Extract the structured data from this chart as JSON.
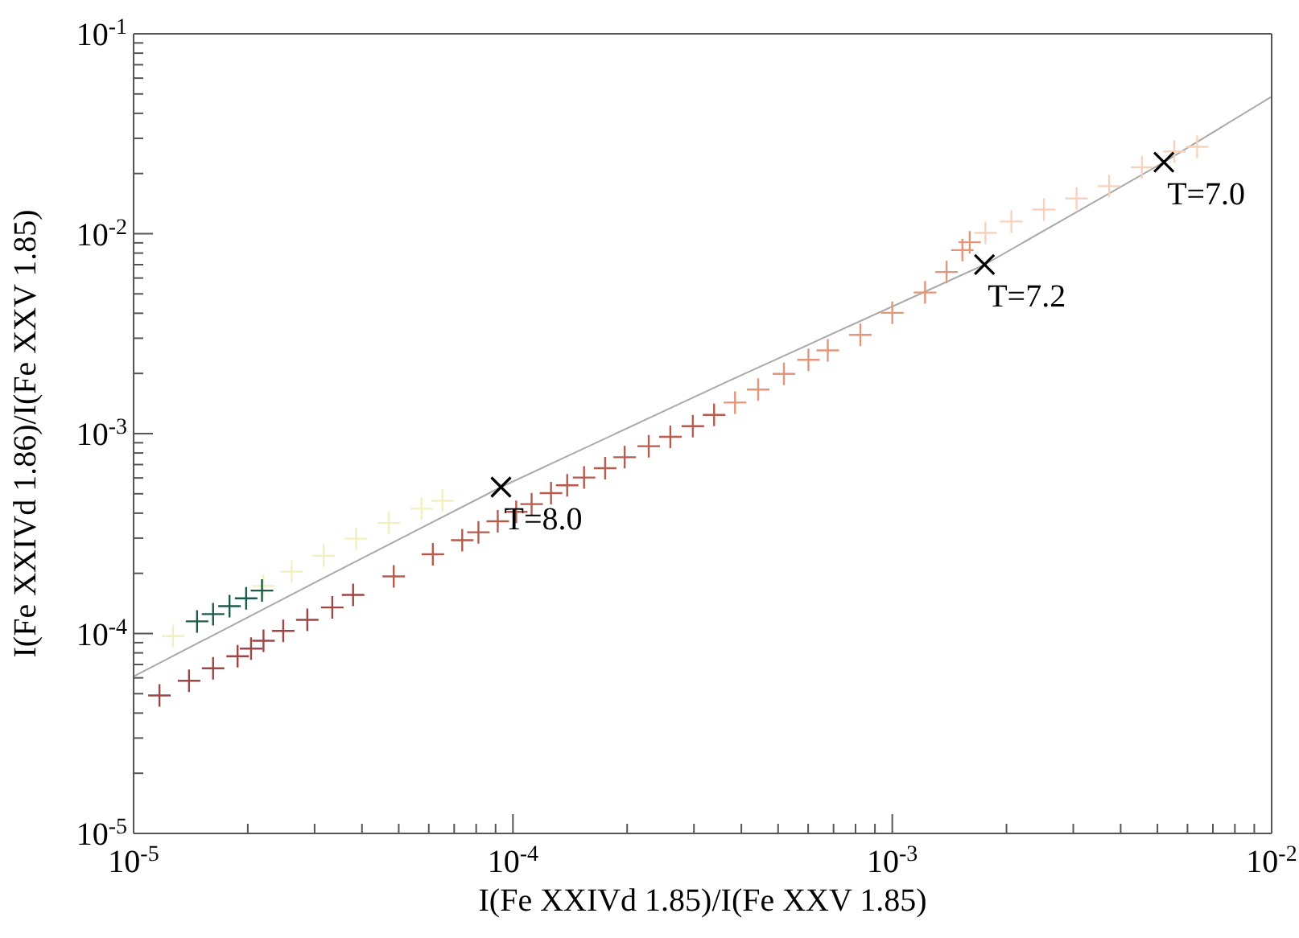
{
  "chart_data": {
    "type": "scatter",
    "xlabel": "I(Fe XXIVd 1.85)/I(Fe XXV 1.85)",
    "ylabel": "I(Fe XXIVd 1.86)/I(Fe XXV 1.85)",
    "log": "xy",
    "marker": "cross",
    "xlim": [
      1e-05,
      0.01
    ],
    "ylim": [
      1e-05,
      0.1
    ],
    "xticks": [
      {
        "value": 1e-05,
        "label": "10$^{-5}$"
      },
      {
        "value": 2e-05,
        "label": null
      },
      {
        "value": 3e-05,
        "label": null
      },
      {
        "value": 4e-05,
        "label": null
      },
      {
        "value": 5e-05,
        "label": null
      },
      {
        "value": 6e-05,
        "label": null
      },
      {
        "value": 7e-05,
        "label": null
      },
      {
        "value": 8e-05,
        "label": null
      },
      {
        "value": 9e-05,
        "label": null
      },
      {
        "value": 0.0001,
        "label": "10$^{-4}$"
      },
      {
        "value": 0.0002,
        "label": null
      },
      {
        "value": 0.0003,
        "label": null
      },
      {
        "value": 0.0004,
        "label": null
      },
      {
        "value": 0.0005,
        "label": null
      },
      {
        "value": 0.0006,
        "label": null
      },
      {
        "value": 0.0007,
        "label": null
      },
      {
        "value": 0.0008,
        "label": null
      },
      {
        "value": 0.0009,
        "label": null
      },
      {
        "value": 0.001,
        "label": "10$^{-3}$"
      },
      {
        "value": 0.002,
        "label": null
      },
      {
        "value": 0.003,
        "label": null
      },
      {
        "value": 0.004,
        "label": null
      },
      {
        "value": 0.005,
        "label": null
      },
      {
        "value": 0.006,
        "label": null
      },
      {
        "value": 0.007,
        "label": null
      },
      {
        "value": 0.008,
        "label": null
      },
      {
        "value": 0.009,
        "label": null
      },
      {
        "value": 0.01,
        "label": "10$^{-2}$"
      }
    ],
    "yticks": [
      {
        "value": 1e-05,
        "label": "10$^{-5}$"
      },
      {
        "value": 2e-05,
        "label": null
      },
      {
        "value": 3e-05,
        "label": null
      },
      {
        "value": 4e-05,
        "label": null
      },
      {
        "value": 5e-05,
        "label": null
      },
      {
        "value": 6e-05,
        "label": null
      },
      {
        "value": 7e-05,
        "label": null
      },
      {
        "value": 8e-05,
        "label": null
      },
      {
        "value": 9e-05,
        "label": null
      },
      {
        "value": 0.0001,
        "label": "10$^{-4}$"
      },
      {
        "value": 0.0002,
        "label": null
      },
      {
        "value": 0.0003,
        "label": null
      },
      {
        "value": 0.0004,
        "label": null
      },
      {
        "value": 0.0005,
        "label": null
      },
      {
        "value": 0.0006,
        "label": null
      },
      {
        "value": 0.0007,
        "label": null
      },
      {
        "value": 0.0008,
        "label": null
      },
      {
        "value": 0.0009,
        "label": null
      },
      {
        "value": 0.001,
        "label": "10$^{-3}$"
      },
      {
        "value": 0.002,
        "label": null
      },
      {
        "value": 0.003,
        "label": null
      },
      {
        "value": 0.004,
        "label": null
      },
      {
        "value": 0.005,
        "label": null
      },
      {
        "value": 0.006,
        "label": null
      },
      {
        "value": 0.007,
        "label": null
      },
      {
        "value": 0.008,
        "label": null
      },
      {
        "value": 0.009,
        "label": null
      },
      {
        "value": 0.01,
        "label": "10$^{-2}$"
      },
      {
        "value": 0.02,
        "label": null
      },
      {
        "value": 0.03,
        "label": null
      },
      {
        "value": 0.04,
        "label": null
      },
      {
        "value": 0.05,
        "label": null
      },
      {
        "value": 0.06,
        "label": null
      },
      {
        "value": 0.07,
        "label": null
      },
      {
        "value": 0.08,
        "label": null
      },
      {
        "value": 0.09,
        "label": null
      },
      {
        "value": 0.1,
        "label": "10$^{-1}$"
      }
    ],
    "series": [
      {
        "type": "line",
        "marker": "none",
        "color": "#aaaaaa",
        "x": [
          1e-05,
          3.18e-05,
          9.3e-05,
          0.000374,
          0.00175,
          0.0052,
          0.01
        ],
        "values": [
          6.1e-05,
          0.00019,
          0.00054,
          0.00185,
          0.007,
          0.0228,
          0.0485
        ]
      },
      {
        "color": "#a04545",
        "x": [
          1.17e-05,
          1.4e-05,
          1.62e-05,
          1.88e-05,
          2.04e-05,
          2.2e-05,
          2.48e-05,
          2.87e-05,
          3.34e-05,
          3.79e-05
        ],
        "values": [
          4.9e-05,
          5.8e-05,
          6.7e-05,
          7.7e-05,
          8.4e-05,
          9.2e-05,
          0.000103,
          0.000117,
          0.000135,
          0.000156
        ]
      },
      {
        "color": "#b85a4c",
        "x": [
          4.85e-05,
          6.15e-05,
          7.35e-05,
          8.11e-05,
          9.12e-05,
          0.000102,
          0.000112,
          0.000126,
          0.000139,
          0.000154,
          0.000175,
          0.000197,
          0.000228,
          0.00026,
          0.000298,
          0.000339
        ],
        "values": [
          0.000193,
          0.000249,
          0.000293,
          0.000321,
          0.000364,
          0.000406,
          0.000444,
          0.000504,
          0.000551,
          0.000603,
          0.000671,
          0.000762,
          0.000865,
          0.000964,
          0.00109,
          0.00124
        ]
      },
      {
        "color": "#e3967a",
        "x": [
          0.000385,
          0.000443,
          0.000518,
          0.000601,
          0.000676,
          0.000824,
          0.001,
          0.00122,
          0.00139,
          0.00153,
          0.0016
        ],
        "values": [
          0.00143,
          0.00166,
          0.00199,
          0.00234,
          0.00261,
          0.00312,
          0.00402,
          0.00508,
          0.00643,
          0.00828,
          0.00906
        ]
      },
      {
        "color": "#f8d2bc",
        "x": [
          0.00176,
          0.00206,
          0.00251,
          0.00306,
          0.00373,
          0.00455,
          0.00554,
          0.00636
        ],
        "values": [
          0.0101,
          0.0115,
          0.0132,
          0.015,
          0.0173,
          0.0215,
          0.0258,
          0.0272
        ]
      },
      {
        "color": "#f3efbf",
        "x": [
          1.27e-05,
          2.2e-05,
          2.61e-05,
          3.17e-05,
          3.86e-05,
          4.71e-05,
          5.74e-05,
          6.52e-05
        ],
        "values": [
          9.7e-05,
          0.000173,
          0.000204,
          0.000245,
          0.000298,
          0.000357,
          0.000421,
          0.000461
        ]
      },
      {
        "color": "#1d5a4a",
        "x": [
          1.47e-05,
          1.62e-05,
          1.79e-05,
          1.98e-05,
          2.18e-05
        ],
        "values": [
          0.000115,
          0.000125,
          0.000137,
          0.00015,
          0.000164
        ]
      },
      {
        "marker": "x",
        "color": "#000000",
        "x": [
          9.3e-05,
          0.00175,
          0.0052
        ],
        "values": [
          0.00054,
          0.007,
          0.0228
        ]
      }
    ],
    "annotations": [
      {
        "text": "T=8.0",
        "x": 9.3e-05,
        "y": 0.00054
      },
      {
        "text": "T=7.2",
        "x": 0.00175,
        "y": 0.007
      },
      {
        "text": "T=7.0",
        "x": 0.0052,
        "y": 0.0228
      }
    ]
  }
}
